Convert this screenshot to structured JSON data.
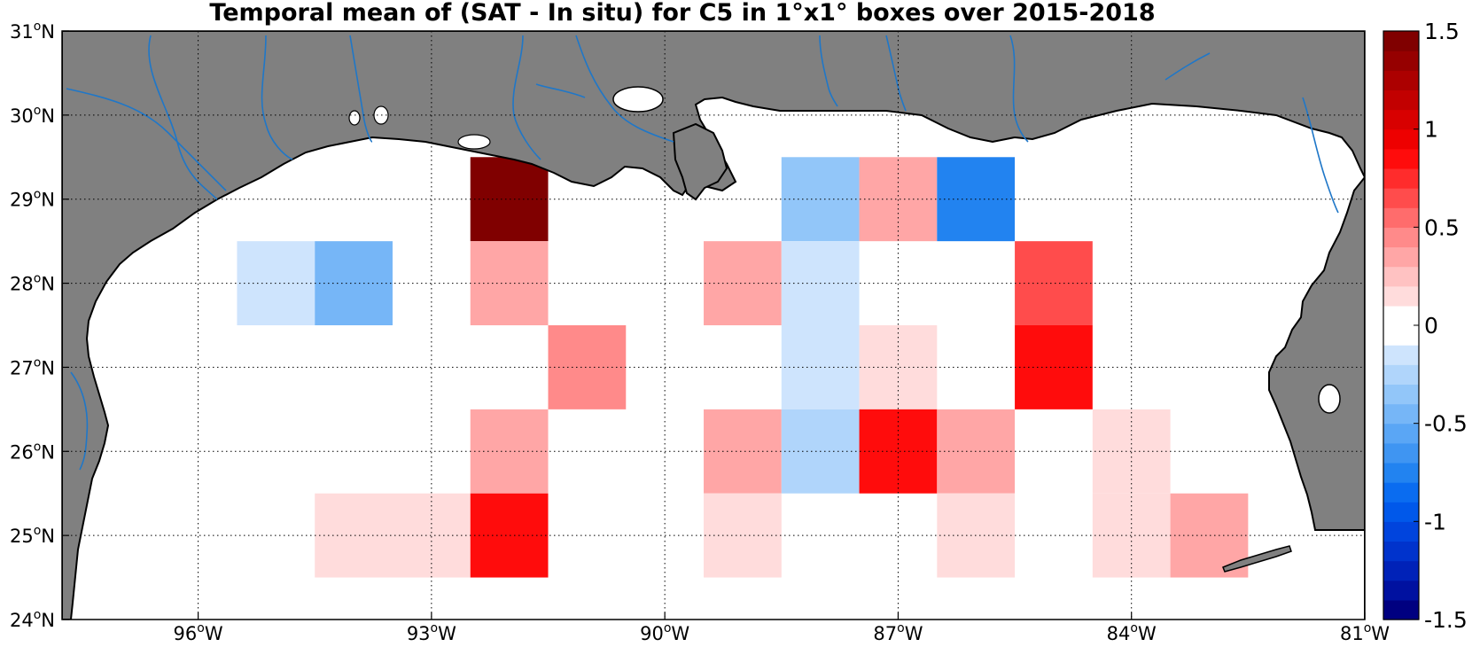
{
  "title": "Temporal mean of (SAT - In situ) for C5 in 1°x1° boxes over 2015-2018",
  "map": {
    "lon_range": [
      -97.75,
      -81.0
    ],
    "lat_range": [
      24.0,
      31.0
    ],
    "lon_ticks": [
      {
        "value": -96,
        "num": "96",
        "deg": "o",
        "hem": "W"
      },
      {
        "value": -93,
        "num": "93",
        "deg": "o",
        "hem": "W"
      },
      {
        "value": -90,
        "num": "90",
        "deg": "o",
        "hem": "W"
      },
      {
        "value": -87,
        "num": "87",
        "deg": "o",
        "hem": "W"
      },
      {
        "value": -84,
        "num": "84",
        "deg": "o",
        "hem": "W"
      },
      {
        "value": -81,
        "num": "81",
        "deg": "o",
        "hem": "W"
      }
    ],
    "lat_ticks": [
      {
        "value": 24,
        "num": "24",
        "deg": "o",
        "hem": "N"
      },
      {
        "value": 25,
        "num": "25",
        "deg": "o",
        "hem": "N"
      },
      {
        "value": 26,
        "num": "26",
        "deg": "o",
        "hem": "N"
      },
      {
        "value": 27,
        "num": "27",
        "deg": "o",
        "hem": "N"
      },
      {
        "value": 28,
        "num": "28",
        "deg": "o",
        "hem": "N"
      },
      {
        "value": 29,
        "num": "29",
        "deg": "o",
        "hem": "N"
      },
      {
        "value": 30,
        "num": "30",
        "deg": "o",
        "hem": "N"
      },
      {
        "value": 31,
        "num": "31",
        "deg": "o",
        "hem": "N"
      }
    ],
    "land_color": "#808080",
    "river_color": "#1f77c8",
    "ocean_color": "#ffffff"
  },
  "chart_data": {
    "type": "heatmap",
    "units": "°",
    "cell_size_deg": 1,
    "cells": [
      {
        "lon": -92,
        "lat": 29,
        "value": 1.5
      },
      {
        "lon": -88,
        "lat": 29,
        "value": -0.4
      },
      {
        "lon": -87,
        "lat": 29,
        "value": 0.3
      },
      {
        "lon": -86,
        "lat": 29,
        "value": -0.75
      },
      {
        "lon": -95,
        "lat": 28,
        "value": -0.1
      },
      {
        "lon": -94,
        "lat": 28,
        "value": -0.5
      },
      {
        "lon": -92,
        "lat": 28,
        "value": 0.3
      },
      {
        "lon": -89,
        "lat": 28,
        "value": 0.3
      },
      {
        "lon": -88,
        "lat": 28,
        "value": -0.1
      },
      {
        "lon": -85,
        "lat": 28,
        "value": 0.65
      },
      {
        "lon": -91,
        "lat": 27,
        "value": 0.45
      },
      {
        "lon": -88,
        "lat": 27,
        "value": -0.1
      },
      {
        "lon": -87,
        "lat": 27,
        "value": 0.15
      },
      {
        "lon": -85,
        "lat": 27,
        "value": 0.9
      },
      {
        "lon": -92,
        "lat": 26,
        "value": 0.3
      },
      {
        "lon": -89,
        "lat": 26,
        "value": 0.3
      },
      {
        "lon": -88,
        "lat": 26,
        "value": -0.25
      },
      {
        "lon": -87,
        "lat": 26,
        "value": 0.8
      },
      {
        "lon": -86,
        "lat": 26,
        "value": 0.3
      },
      {
        "lon": -84,
        "lat": 26,
        "value": 0.15
      },
      {
        "lon": -94,
        "lat": 25,
        "value": 0.15
      },
      {
        "lon": -93,
        "lat": 25,
        "value": 0.15
      },
      {
        "lon": -92,
        "lat": 25,
        "value": 0.9
      },
      {
        "lon": -89,
        "lat": 25,
        "value": 0.15
      },
      {
        "lon": -86,
        "lat": 25,
        "value": 0.15
      },
      {
        "lon": -84,
        "lat": 25,
        "value": 0.15
      },
      {
        "lon": -83,
        "lat": 25,
        "value": 0.3
      }
    ],
    "colorbar": {
      "range": [
        -1.5,
        1.5
      ],
      "ticks": [
        1.5,
        1,
        0.5,
        0,
        -0.5,
        -1,
        -1.5
      ],
      "tick_labels": [
        "1.5",
        "1",
        "0.5",
        "0",
        "-0.5",
        "-1",
        "-1.5"
      ],
      "colors": [
        "#000080",
        "#0011a0",
        "#0022b8",
        "#0033cc",
        "#0044dd",
        "#0058ea",
        "#0a6cf0",
        "#2283f0",
        "#3f95f2",
        "#5aa6f5",
        "#76b6f7",
        "#92c6f9",
        "#b0d5fb",
        "#cee4fd",
        "#ffffff",
        "#ffffff",
        "#ffdcdc",
        "#ffc2c2",
        "#ffa6a6",
        "#ff8a8a",
        "#ff6c6c",
        "#ff4c4c",
        "#ff2c2c",
        "#ff0c0c",
        "#ee0000",
        "#d80000",
        "#c20000",
        "#ac0000",
        "#960000",
        "#800000"
      ]
    }
  }
}
